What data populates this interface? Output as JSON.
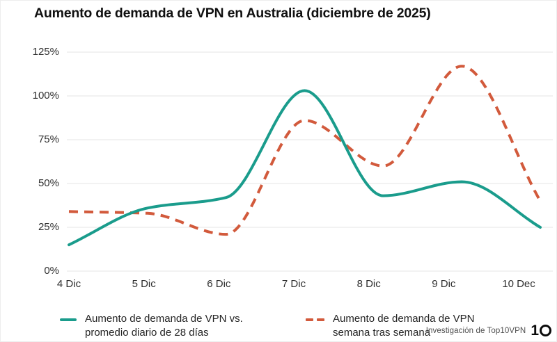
{
  "title": "Aumento de demanda de VPN en Australia (diciembre de 2025)",
  "chart_data": {
    "type": "line",
    "x_labels": [
      "4 Dic",
      "5 Dic",
      "6 Dic",
      "7 Dic",
      "8 Dic",
      "9 Dic",
      "10 Dec"
    ],
    "y_ticks": [
      "0%",
      "25%",
      "50%",
      "75%",
      "100%",
      "125%"
    ],
    "ylim": [
      0,
      125
    ],
    "y_unit": "%",
    "grid": "horizontal-only",
    "legend_position": "bottom",
    "series": [
      {
        "name": "Aumento de demanda de VPN vs. promedio diario de 28 días",
        "style": "solid",
        "color": "#1a9c8c",
        "values": [
          15,
          36,
          42,
          103,
          43,
          51,
          25
        ]
      },
      {
        "name": "Aumento de demanda de VPN semana tras semana",
        "style": "dashed",
        "color": "#d25a3c",
        "values": [
          34,
          33,
          21,
          86,
          60,
          117,
          40
        ]
      }
    ]
  },
  "legend": {
    "items": [
      {
        "lines": [
          "Aumento de demanda de VPN vs.",
          "promedio diario de 28 días"
        ],
        "marker": "solid",
        "color": "#1a9c8c"
      },
      {
        "lines": [
          "Aumento de demanda de VPN",
          "semana tras semana"
        ],
        "marker": "dashed",
        "color": "#d25a3c"
      }
    ]
  },
  "footer": {
    "source": "Investigación de Top10VPN",
    "logo": "10"
  },
  "colors": {
    "teal": "#1a9c8c",
    "orange": "#d25a3c",
    "grid": "#ebebeb",
    "title_text": "#101010",
    "axis_text": "#2f2f2f",
    "footer_text": "#4f4f4f",
    "background": "#ffffff"
  }
}
